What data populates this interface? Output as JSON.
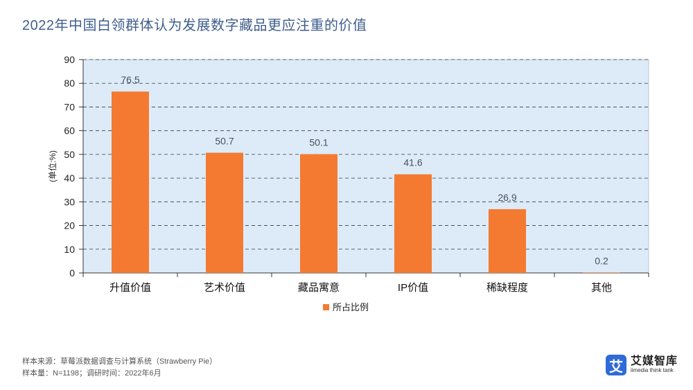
{
  "title": "2022年中国白领群体认为发展数字藏品更应注重的价值",
  "chart_data": {
    "type": "bar",
    "categories": [
      "升值价值",
      "艺术价值",
      "藏品寓意",
      "IP价值",
      "稀缺程度",
      "其他"
    ],
    "series": [
      {
        "name": "所占比例",
        "values": [
          76.5,
          50.7,
          50.1,
          41.6,
          26.9,
          0.2
        ]
      }
    ],
    "ylabel": "(单位:%)",
    "ylim": [
      0,
      90
    ],
    "yticks": [
      0,
      10,
      20,
      30,
      40,
      50,
      60,
      70,
      80,
      90
    ],
    "grid": true,
    "legend_position": "bottom"
  },
  "colors": {
    "bar": "#f47a32",
    "plot_bg": "#dcebf7",
    "grid": "#3a3a3a",
    "title": "#3f5e8c"
  },
  "footnotes": [
    "样本来源：草莓派数据调查与计算系统（Strawberry Pie）",
    "样本量：N=1198；调研时间：2022年6月"
  ],
  "brand": {
    "mark": "艾",
    "name": "艾媒智库",
    "sub": "iimedia think tank"
  }
}
